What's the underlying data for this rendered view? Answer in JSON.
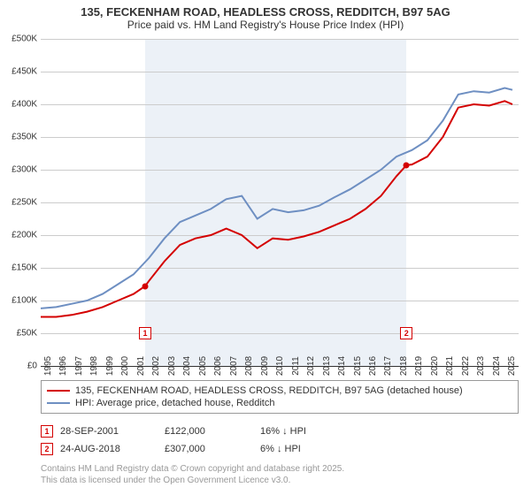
{
  "title": {
    "line1": "135, FECKENHAM ROAD, HEADLESS CROSS, REDDITCH, B97 5AG",
    "line2": "Price paid vs. HM Land Registry's House Price Index (HPI)"
  },
  "chart": {
    "type": "line",
    "background_color": "#ffffff",
    "shaded_band_color": "#ecf1f7",
    "grid_color": "#cccccc",
    "axis_color": "#333333",
    "xlim": [
      1995,
      2025.9
    ],
    "ylim": [
      0,
      500000
    ],
    "x_ticks": [
      1995,
      1996,
      1997,
      1998,
      1999,
      2000,
      2001,
      2002,
      2003,
      2004,
      2005,
      2006,
      2007,
      2008,
      2009,
      2010,
      2011,
      2012,
      2013,
      2014,
      2015,
      2016,
      2017,
      2018,
      2019,
      2020,
      2021,
      2022,
      2023,
      2024,
      2025
    ],
    "y_ticks": [
      0,
      50000,
      100000,
      150000,
      200000,
      250000,
      300000,
      350000,
      400000,
      450000,
      500000
    ],
    "y_tick_labels": [
      "£0",
      "£50K",
      "£100K",
      "£150K",
      "£200K",
      "£250K",
      "£300K",
      "£350K",
      "£400K",
      "£450K",
      "£500K"
    ],
    "shaded_band_x": [
      2001.75,
      2018.65
    ],
    "series": [
      {
        "name": "price_paid",
        "label": "135, FECKENHAM ROAD, HEADLESS CROSS, REDDITCH, B97 5AG (detached house)",
        "color": "#d40000",
        "line_width": 2,
        "points": [
          [
            1995,
            75000
          ],
          [
            1996,
            75000
          ],
          [
            1997,
            78000
          ],
          [
            1998,
            83000
          ],
          [
            1999,
            90000
          ],
          [
            2000,
            100000
          ],
          [
            2001,
            110000
          ],
          [
            2001.75,
            122000
          ],
          [
            2002,
            130000
          ],
          [
            2003,
            160000
          ],
          [
            2004,
            185000
          ],
          [
            2005,
            195000
          ],
          [
            2006,
            200000
          ],
          [
            2007,
            210000
          ],
          [
            2008,
            200000
          ],
          [
            2009,
            180000
          ],
          [
            2010,
            195000
          ],
          [
            2011,
            193000
          ],
          [
            2012,
            198000
          ],
          [
            2013,
            205000
          ],
          [
            2014,
            215000
          ],
          [
            2015,
            225000
          ],
          [
            2016,
            240000
          ],
          [
            2017,
            260000
          ],
          [
            2018,
            290000
          ],
          [
            2018.65,
            307000
          ],
          [
            2019,
            308000
          ],
          [
            2020,
            320000
          ],
          [
            2021,
            350000
          ],
          [
            2022,
            395000
          ],
          [
            2023,
            400000
          ],
          [
            2024,
            398000
          ],
          [
            2025,
            405000
          ],
          [
            2025.5,
            400000
          ]
        ]
      },
      {
        "name": "hpi",
        "label": "HPI: Average price, detached house, Redditch",
        "color": "#6e8fc2",
        "line_width": 2,
        "points": [
          [
            1995,
            88000
          ],
          [
            1996,
            90000
          ],
          [
            1997,
            95000
          ],
          [
            1998,
            100000
          ],
          [
            1999,
            110000
          ],
          [
            2000,
            125000
          ],
          [
            2001,
            140000
          ],
          [
            2002,
            165000
          ],
          [
            2003,
            195000
          ],
          [
            2004,
            220000
          ],
          [
            2005,
            230000
          ],
          [
            2006,
            240000
          ],
          [
            2007,
            255000
          ],
          [
            2008,
            260000
          ],
          [
            2009,
            225000
          ],
          [
            2010,
            240000
          ],
          [
            2011,
            235000
          ],
          [
            2012,
            238000
          ],
          [
            2013,
            245000
          ],
          [
            2014,
            258000
          ],
          [
            2015,
            270000
          ],
          [
            2016,
            285000
          ],
          [
            2017,
            300000
          ],
          [
            2018,
            320000
          ],
          [
            2019,
            330000
          ],
          [
            2020,
            345000
          ],
          [
            2021,
            375000
          ],
          [
            2022,
            415000
          ],
          [
            2023,
            420000
          ],
          [
            2024,
            418000
          ],
          [
            2025,
            425000
          ],
          [
            2025.5,
            422000
          ]
        ]
      }
    ],
    "sale_markers": [
      {
        "id": "1",
        "x": 2001.75,
        "y_line": 122000,
        "box_y": 50000,
        "color": "#d40000"
      },
      {
        "id": "2",
        "x": 2018.65,
        "y_line": 307000,
        "box_y": 50000,
        "color": "#d40000"
      }
    ]
  },
  "legend": {
    "rows": [
      {
        "color": "#d40000",
        "width": 2,
        "label_path": "chart.series.0.label"
      },
      {
        "color": "#6e8fc2",
        "width": 2,
        "label_path": "chart.series.1.label"
      }
    ]
  },
  "transactions": [
    {
      "marker": "1",
      "marker_color": "#d40000",
      "date": "28-SEP-2001",
      "price": "£122,000",
      "pct": "16% ↓ HPI"
    },
    {
      "marker": "2",
      "marker_color": "#d40000",
      "date": "24-AUG-2018",
      "price": "£307,000",
      "pct": "6% ↓ HPI"
    }
  ],
  "footer": {
    "line1": "Contains HM Land Registry data © Crown copyright and database right 2025.",
    "line2": "This data is licensed under the Open Government Licence v3.0."
  }
}
